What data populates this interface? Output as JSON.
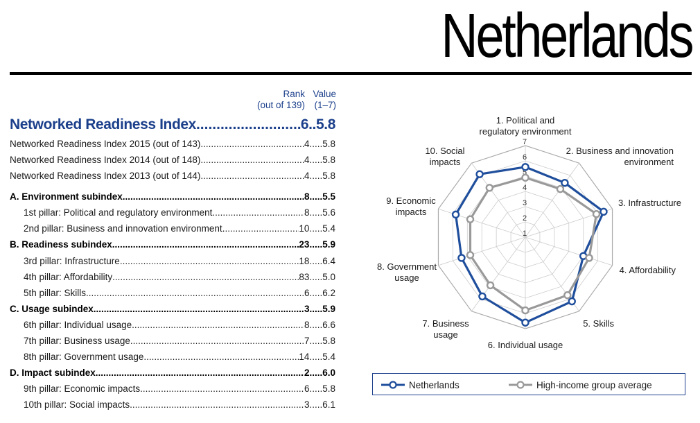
{
  "title": "Netherlands",
  "header": {
    "rank": "Rank",
    "rank_sub": "(out of 139)",
    "value": "Value",
    "value_sub": "(1–7)"
  },
  "table": [
    {
      "label": "Networked Readiness Index",
      "rank": "6",
      "value": "5.8",
      "kind": "main"
    },
    {
      "label": "Networked Readiness Index 2015 (out of 143)",
      "rank": "4",
      "value": "5.8",
      "kind": "plain"
    },
    {
      "label": "Networked Readiness Index 2014 (out of 148)",
      "rank": "4",
      "value": "5.8",
      "kind": "plain"
    },
    {
      "label": "Networked Readiness Index 2013 (out of 144)",
      "rank": "4",
      "value": "5.8",
      "kind": "plain"
    },
    {
      "label": "A. Environment subindex",
      "rank": "8",
      "value": "5.5",
      "kind": "sub"
    },
    {
      "label": "1st pillar: Political and regulatory environment",
      "rank": "8",
      "value": "5.6",
      "kind": "pillar"
    },
    {
      "label": "2nd pillar: Business and innovation environment",
      "rank": "10",
      "value": "5.4",
      "kind": "pillar"
    },
    {
      "label": "B. Readiness subindex",
      "rank": "23",
      "value": "5.9",
      "kind": "sub"
    },
    {
      "label": "3rd pillar: Infrastructure",
      "rank": "18",
      "value": "6.4",
      "kind": "pillar"
    },
    {
      "label": "4th pillar: Affordability",
      "rank": "83",
      "value": "5.0",
      "kind": "pillar"
    },
    {
      "label": "5th pillar: Skills",
      "rank": "6",
      "value": "6.2",
      "kind": "pillar"
    },
    {
      "label": "C. Usage subindex",
      "rank": "3",
      "value": "5.9",
      "kind": "sub"
    },
    {
      "label": "6th pillar: Individual usage",
      "rank": "8",
      "value": "6.6",
      "kind": "pillar"
    },
    {
      "label": "7th pillar: Business usage",
      "rank": "7",
      "value": "5.8",
      "kind": "pillar"
    },
    {
      "label": "8th pillar: Government usage",
      "rank": "14",
      "value": "5.4",
      "kind": "pillar"
    },
    {
      "label": "D. Impact subindex",
      "rank": "2",
      "value": "6.0",
      "kind": "sub"
    },
    {
      "label": "9th pillar: Economic impacts",
      "rank": "6",
      "value": "5.8",
      "kind": "pillar"
    },
    {
      "label": "10th pillar: Social impacts",
      "rank": "3",
      "value": "6.1",
      "kind": "pillar"
    }
  ],
  "chart_data": {
    "type": "radar",
    "axes": [
      [
        "1. Political and",
        "regulatory environment"
      ],
      [
        "2. Business and innovation",
        "environment"
      ],
      [
        "3. Infrastructure"
      ],
      [
        "4. Affordability"
      ],
      [
        "5. Skills"
      ],
      [
        "6. Individual usage"
      ],
      [
        "7. Business",
        "usage"
      ],
      [
        "8. Government",
        "usage"
      ],
      [
        "9. Economic",
        "impacts"
      ],
      [
        "10. Social",
        "impacts"
      ]
    ],
    "ticks": [
      "1",
      "2",
      "3",
      "4",
      "5",
      "6",
      "7"
    ],
    "range": [
      1,
      7
    ],
    "series": [
      {
        "name": "Netherlands",
        "color": "#1f4e9c",
        "values": [
          5.6,
          5.4,
          6.4,
          5.0,
          6.2,
          6.6,
          5.8,
          5.4,
          5.8,
          6.1
        ]
      },
      {
        "name": "High-income group average",
        "color": "#999999",
        "values": [
          4.9,
          4.9,
          5.9,
          5.4,
          5.7,
          5.8,
          4.9,
          4.8,
          4.8,
          5.0
        ]
      }
    ],
    "legend_position": "bottom"
  }
}
